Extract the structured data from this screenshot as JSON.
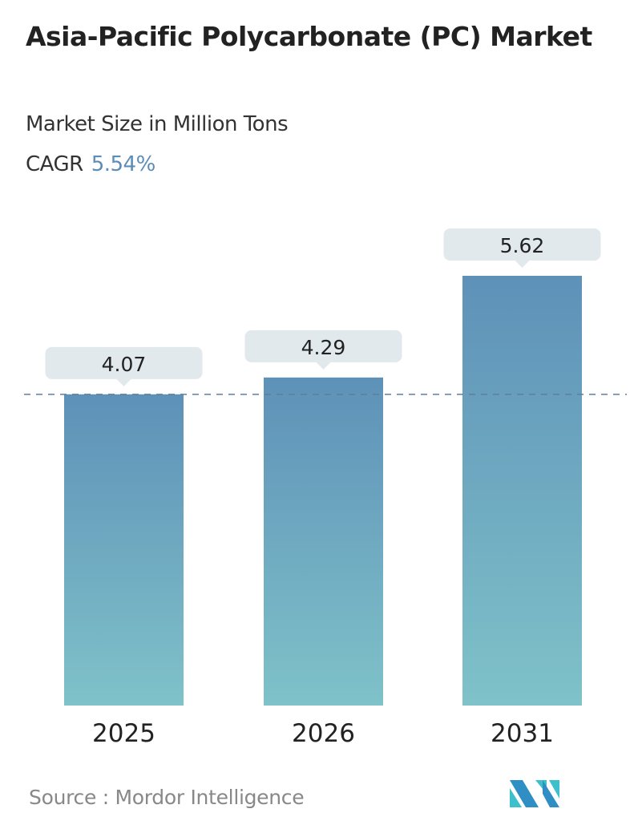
{
  "title": "Asia-Pacific Polycarbonate (PC) Market",
  "subtitle": "Market Size in Million Tons",
  "cagr_label": "CAGR",
  "cagr_value": "5.54%",
  "source": "Source :  Mordor Intelligence",
  "logo_text": "Mordor Intelligence",
  "colors": {
    "bar_top": "#5e91b8",
    "bar_bottom": "#7fc2c9",
    "label_bg": "#e1e9ec",
    "cagr": "#5b8db8"
  },
  "chart_data": {
    "type": "bar",
    "categories": [
      "2025",
      "2026",
      "2031"
    ],
    "values": [
      4.07,
      4.29,
      5.62
    ],
    "data_labels": [
      "4.07",
      "4.29",
      "5.62"
    ],
    "ylim": [
      0,
      5.62
    ],
    "reference_line": 4.07,
    "grid": false
  }
}
